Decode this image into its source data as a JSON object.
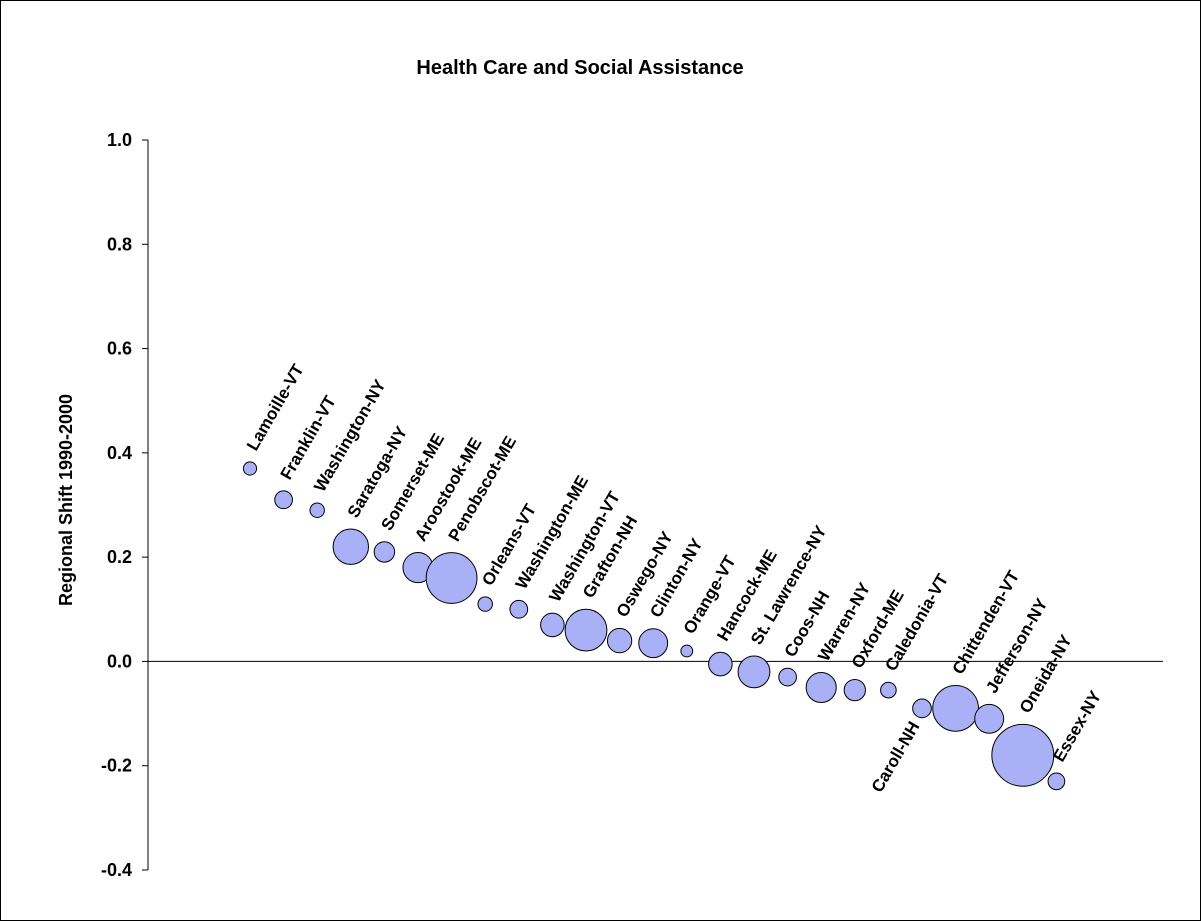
{
  "chart_data": {
    "type": "scatter",
    "title": "Health Care and Social Assistance",
    "xlabel": "",
    "ylabel": "Regional Shift 1990-2000",
    "ylim": [
      -0.4,
      1.0
    ],
    "yticks": [
      "1.0",
      "0.8",
      "0.6",
      "0.4",
      "0.2",
      "0.0",
      "-0.2",
      "-0.4"
    ],
    "bubble_color": "#aab0f5",
    "points": [
      {
        "label": "Lamoille-VT",
        "x": 1,
        "y": 0.37,
        "size": 0.25
      },
      {
        "label": "Franklin-VT",
        "x": 2,
        "y": 0.31,
        "size": 0.45
      },
      {
        "label": "Washington-NY",
        "x": 3,
        "y": 0.29,
        "size": 0.3
      },
      {
        "label": "Saratoga-NY",
        "x": 4,
        "y": 0.22,
        "size": 1.8
      },
      {
        "label": "Somerset-ME",
        "x": 5,
        "y": 0.21,
        "size": 0.6
      },
      {
        "label": "Aroostook-ME",
        "x": 6,
        "y": 0.18,
        "size": 1.3
      },
      {
        "label": "Penobscot-ME",
        "x": 7,
        "y": 0.16,
        "size": 3.7
      },
      {
        "label": "Orleans-VT",
        "x": 8,
        "y": 0.11,
        "size": 0.3
      },
      {
        "label": "Washington-ME",
        "x": 9,
        "y": 0.1,
        "size": 0.45
      },
      {
        "label": "Washington-VT",
        "x": 10,
        "y": 0.07,
        "size": 0.8
      },
      {
        "label": "Grafton-NH",
        "x": 11,
        "y": 0.06,
        "size": 2.5
      },
      {
        "label": "Oswego-NY",
        "x": 12,
        "y": 0.04,
        "size": 0.85
      },
      {
        "label": "Clinton-NY",
        "x": 13,
        "y": 0.035,
        "size": 1.2
      },
      {
        "label": "Orange-VT",
        "x": 14,
        "y": 0.02,
        "size": 0.2
      },
      {
        "label": "Hancock-ME",
        "x": 15,
        "y": -0.005,
        "size": 0.8
      },
      {
        "label": "St. Lawrence-NY",
        "x": 16,
        "y": -0.02,
        "size": 1.45
      },
      {
        "label": "Coos-NH",
        "x": 17,
        "y": -0.03,
        "size": 0.45
      },
      {
        "label": "Warren-NY",
        "x": 18,
        "y": -0.05,
        "size": 1.3
      },
      {
        "label": "Oxford-ME",
        "x": 19,
        "y": -0.055,
        "size": 0.65
      },
      {
        "label": "Caledonia-VT",
        "x": 20,
        "y": -0.055,
        "size": 0.35
      },
      {
        "label": "Caroll-NH",
        "x": 21,
        "y": -0.09,
        "size": 0.5
      },
      {
        "label": "Chittenden-VT",
        "x": 22,
        "y": -0.09,
        "size": 3.0
      },
      {
        "label": "Jefferson-NY",
        "x": 23,
        "y": -0.11,
        "size": 1.2
      },
      {
        "label": "Oneida-NY",
        "x": 24,
        "y": -0.18,
        "size": 5.5
      },
      {
        "label": "Essex-NY",
        "x": 25,
        "y": -0.23,
        "size": 0.4
      }
    ]
  }
}
